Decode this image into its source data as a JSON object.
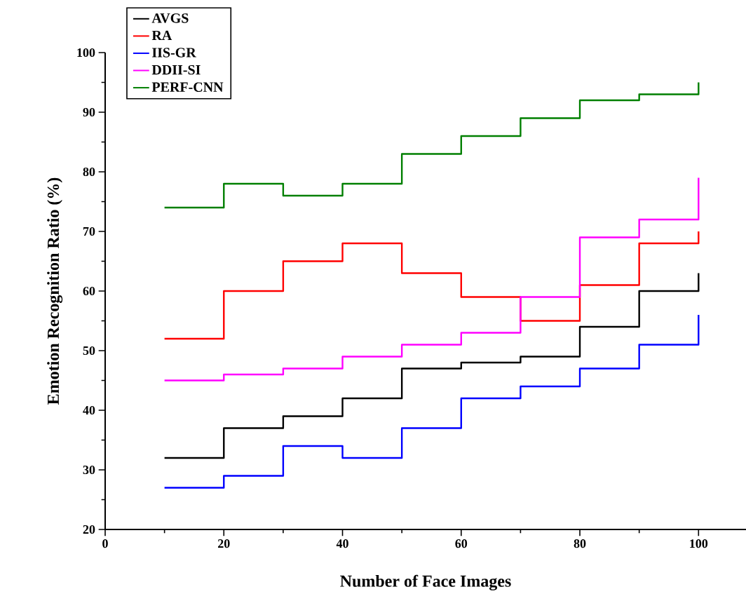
{
  "chart_data": {
    "type": "step",
    "xlabel": "Number of Face Images",
    "ylabel": "Emotion Recognition Ratio (%)",
    "x": [
      10,
      20,
      30,
      40,
      50,
      60,
      70,
      80,
      90,
      100
    ],
    "series": [
      {
        "name": "AVGS",
        "color": "#000000",
        "values": [
          32,
          37,
          39,
          42,
          47,
          48,
          49,
          54,
          60,
          63
        ]
      },
      {
        "name": "RA",
        "color": "#ff0000",
        "values": [
          52,
          60,
          65,
          68,
          63,
          59,
          55,
          61,
          68,
          70
        ]
      },
      {
        "name": "IIS-GR",
        "color": "#0000ff",
        "values": [
          27,
          29,
          34,
          32,
          37,
          42,
          44,
          47,
          51,
          56
        ]
      },
      {
        "name": "DDII-SI",
        "color": "#ff00ff",
        "values": [
          45,
          46,
          47,
          49,
          51,
          53,
          59,
          69,
          72,
          79
        ]
      },
      {
        "name": "PERF-CNN",
        "color": "#007f00",
        "values": [
          74,
          78,
          76,
          78,
          83,
          86,
          89,
          92,
          93,
          95
        ]
      }
    ],
    "xlim": [
      0,
      108
    ],
    "ylim": [
      20,
      100
    ],
    "xticks": [
      0,
      20,
      40,
      60,
      80,
      100
    ],
    "yticks": [
      20,
      30,
      40,
      50,
      60,
      70,
      80,
      90,
      100
    ],
    "legend": "top left"
  }
}
